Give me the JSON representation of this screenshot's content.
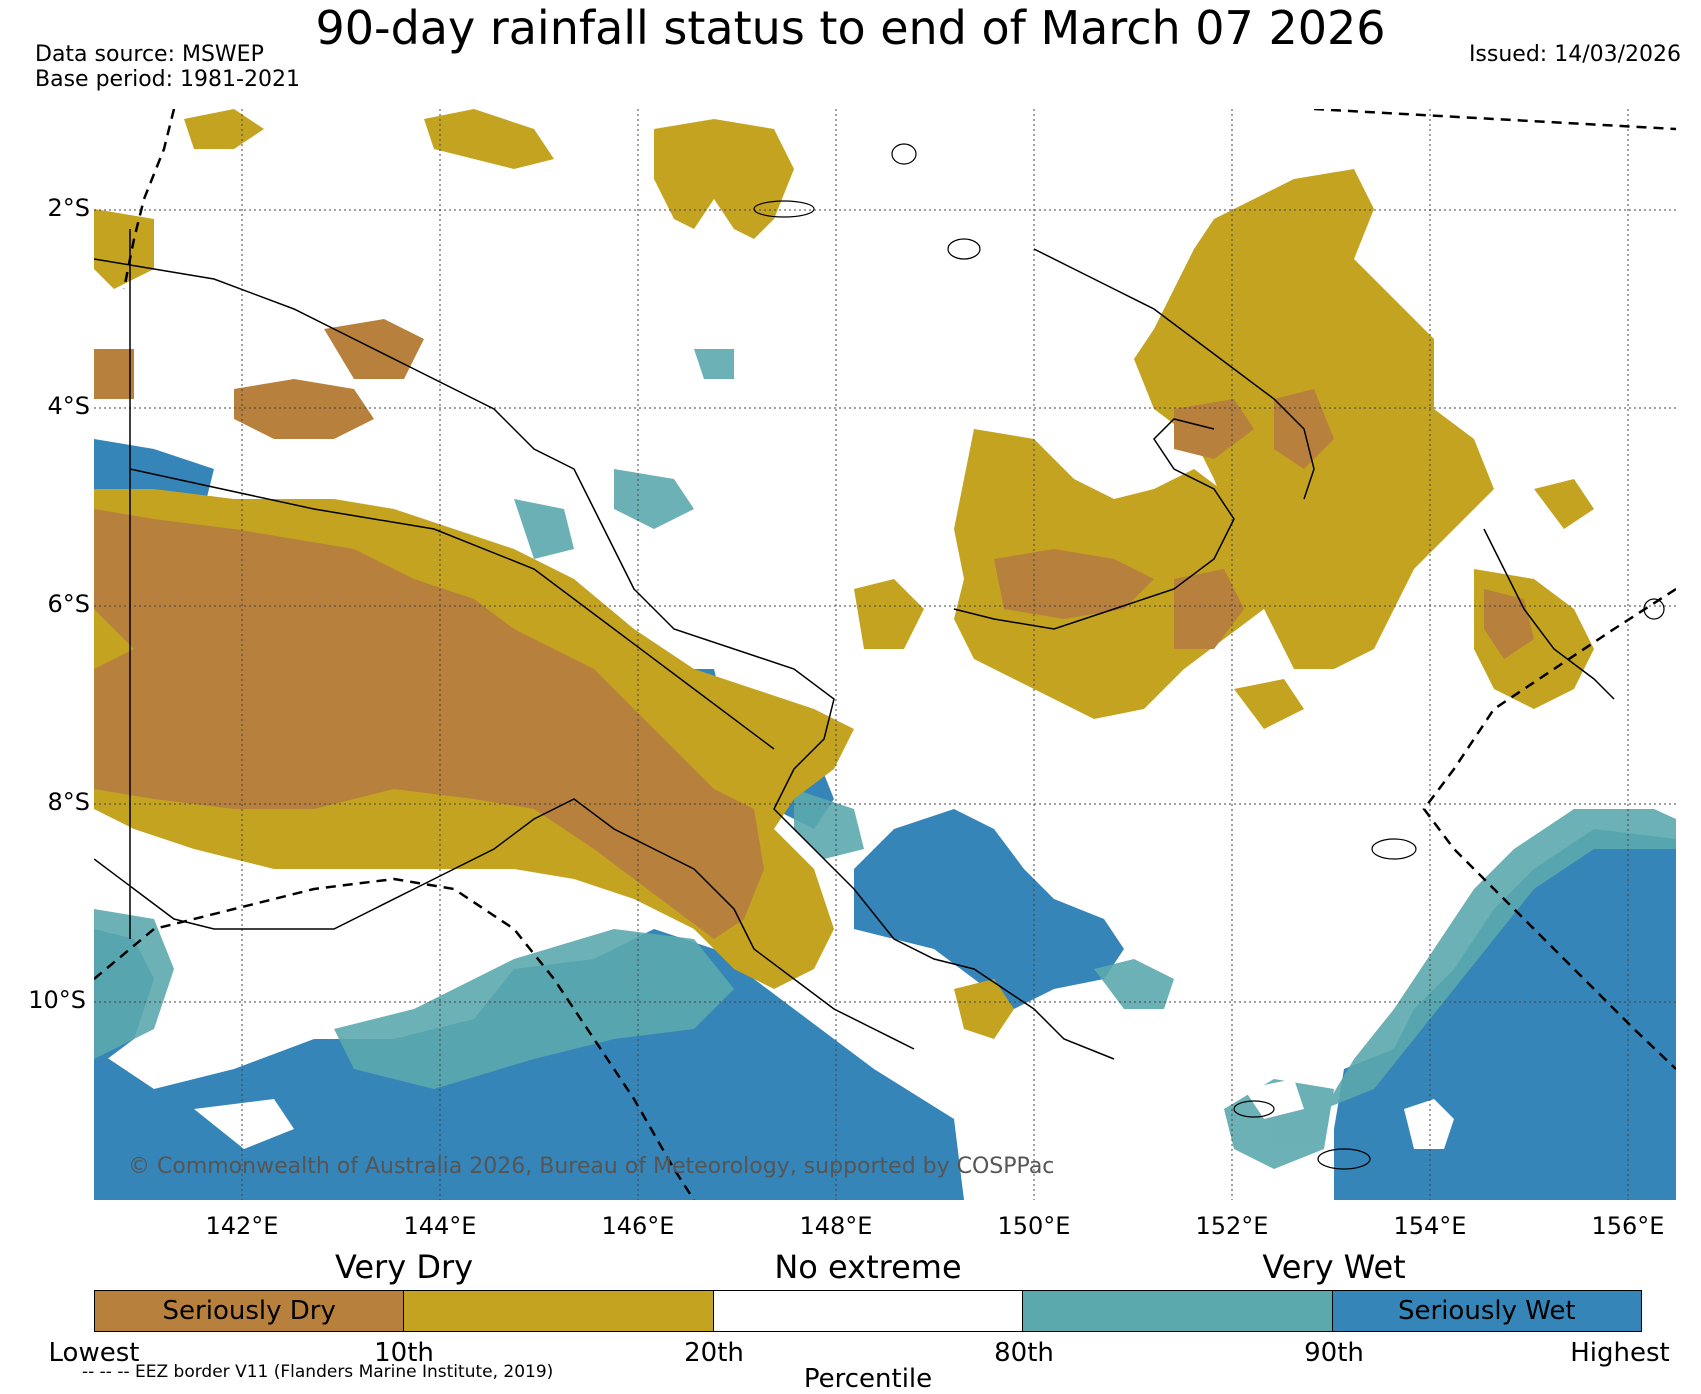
{
  "title": "90-day rainfall status to end of March 07 2026",
  "data_source": "Data source: MSWEP",
  "base_period": "Base period: 1981-2021",
  "issued": "Issued: 14/03/2026",
  "copyright": "© Commonwealth of Australia 2026, Bureau of Meteorology, supported by COSPPac",
  "latitudes": [
    "2°S",
    "4°S",
    "6°S",
    "8°S",
    "10°S"
  ],
  "longitudes": [
    "142°E",
    "144°E",
    "146°E",
    "148°E",
    "150°E",
    "152°E",
    "154°E",
    "156°E"
  ],
  "bands": {
    "dry": "Very Dry",
    "none": "No extreme",
    "wet": "Very Wet"
  },
  "colorbar": [
    {
      "label": "Seriously Dry",
      "color": "#b8803d"
    },
    {
      "label": "",
      "color": "#c3a31f"
    },
    {
      "label": "",
      "color": "#ffffff"
    },
    {
      "label": "",
      "color": "#5ba8ad"
    },
    {
      "label": "Seriously Wet",
      "color": "#3585b9"
    }
  ],
  "percentiles": [
    "Lowest",
    "10th",
    "20th",
    "80th",
    "90th",
    "Highest"
  ],
  "percentile_title": "Percentile",
  "eez_note": "-- -- -- EEZ border V11 (Flanders Marine Institute, 2019)",
  "colors": {
    "seriously_dry": "#b8803d",
    "very_dry": "#c3a31f",
    "very_wet": "#5ba8ad",
    "seriously_wet": "#3585b9"
  }
}
